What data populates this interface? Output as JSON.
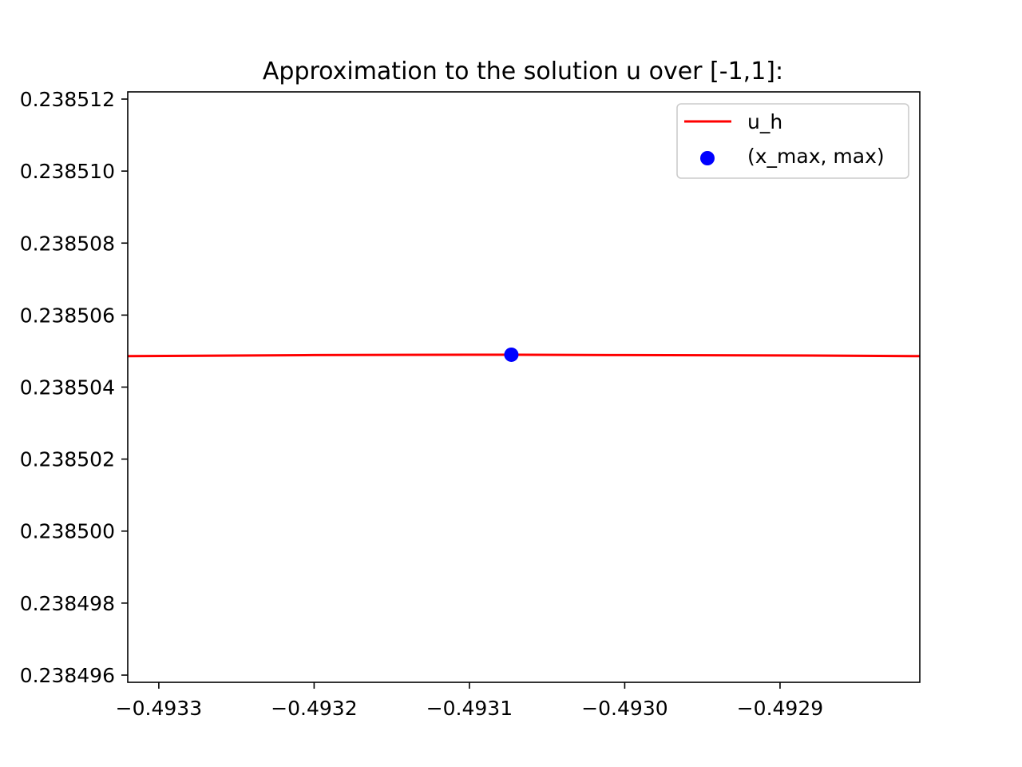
{
  "chart_data": {
    "type": "line",
    "title": "Approximation to the solution u over [-1,1]:",
    "xlabel": "",
    "ylabel": "",
    "xlim": [
      -0.49332,
      -0.49281
    ],
    "ylim": [
      0.2384958,
      0.2385122
    ],
    "grid": false,
    "legend_position": "top-right",
    "x_ticks": [
      -0.4933,
      -0.4932,
      -0.4931,
      -0.493,
      -0.4929
    ],
    "x_tick_labels": [
      "−0.4933",
      "−0.4932",
      "−0.4931",
      "−0.4930",
      "−0.4929"
    ],
    "y_ticks": [
      0.238496,
      0.238498,
      0.2385,
      0.238502,
      0.238504,
      0.238506,
      0.238508,
      0.23851,
      0.238512
    ],
    "y_tick_labels": [
      "0.238496",
      "0.238498",
      "0.238500",
      "0.238502",
      "0.238504",
      "0.238506",
      "0.238508",
      "0.238510",
      "0.238512"
    ],
    "series": [
      {
        "name": "u_h",
        "kind": "line",
        "color": "#ff0000",
        "x": [
          -0.49332,
          -0.4932,
          -0.4931,
          -0.49307,
          -0.493,
          -0.4929,
          -0.49281
        ],
        "y": [
          0.23850486,
          0.23850489,
          0.2385049,
          0.2385049,
          0.23850489,
          0.23850488,
          0.23850486
        ]
      },
      {
        "name": "(x_max, max)",
        "kind": "scatter",
        "color": "#0000ff",
        "x": [
          -0.493073
        ],
        "y": [
          0.2385049
        ]
      }
    ]
  }
}
